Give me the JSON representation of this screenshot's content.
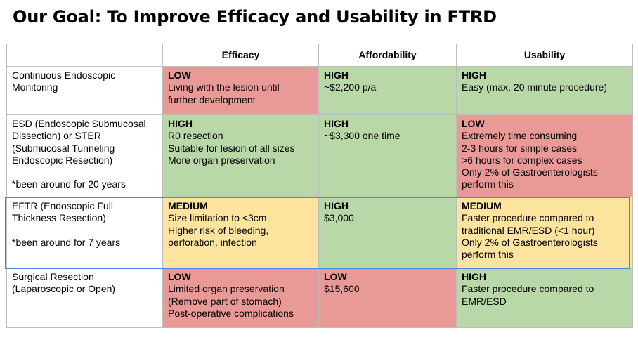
{
  "title": "Our Goal: To Improve Efficacy and Usability in FTRD",
  "headers": [
    "",
    "Efficacy",
    "Affordability",
    "Usability"
  ],
  "rows": [
    {
      "label": [
        "Continuous Endoscopic",
        "Monitoring"
      ],
      "note": "",
      "cells": [
        {
          "color": "red",
          "level": "LOW",
          "lines": [
            "Living with the lesion until",
            "further development"
          ]
        },
        {
          "color": "green",
          "level": "HIGH",
          "lines": [
            "~$2,200 p/a"
          ]
        },
        {
          "color": "green",
          "level": "HIGH",
          "lines": [
            "Easy (max. 20 minute procedure)"
          ]
        }
      ]
    },
    {
      "label": [
        "ESD (Endoscopic Submucosal",
        "Dissection) or STER",
        "(Submucosal Tunneling",
        "Endoscopic Resection)"
      ],
      "note": "*been around for 20 years",
      "cells": [
        {
          "color": "green",
          "level": "HIGH",
          "lines": [
            "R0 resection",
            "Suitable for lesion of all sizes",
            "More organ preservation"
          ]
        },
        {
          "color": "green",
          "level": "HIGH",
          "lines": [
            "~$3,300 one time"
          ]
        },
        {
          "color": "red",
          "level": "LOW",
          "lines": [
            "Extremely time consuming",
            "2-3 hours for simple cases",
            ">6 hours for complex cases",
            "Only 2% of Gastroenterologists",
            "perform this"
          ]
        }
      ]
    },
    {
      "label": [
        "EFTR (Endoscopic Full",
        "Thickness Resection)"
      ],
      "note": "*been around for 7 years",
      "cells": [
        {
          "color": "yellow",
          "level": "MEDIUM",
          "lines": [
            "Size limitation to <3cm",
            "Higher risk of bleeding,",
            "perforation, infection"
          ]
        },
        {
          "color": "green",
          "level": "HIGH",
          "lines": [
            "$3,000"
          ]
        },
        {
          "color": "yellow",
          "level": "MEDIUM",
          "lines": [
            "Faster procedure compared to",
            "traditional EMR/ESD (<1 hour)",
            "Only 2% of Gastroenterologists",
            "perform this"
          ]
        }
      ]
    },
    {
      "label": [
        "Surgical Resection",
        "(Laparoscopic or Open)"
      ],
      "note": "",
      "cells": [
        {
          "color": "red",
          "level": "LOW",
          "lines": [
            "Limited organ preservation",
            "(Remove part of stomach)",
            "Post-operative complications"
          ]
        },
        {
          "color": "red",
          "level": "LOW",
          "lines": [
            "$15,600"
          ]
        },
        {
          "color": "green",
          "level": "HIGH",
          "lines": [
            "Faster procedure compared to",
            "EMR/ESD"
          ]
        }
      ]
    }
  ],
  "highlight_row": 2,
  "colors": {
    "red": "#e99a97",
    "green": "#b8d8a8",
    "yellow": "#fde49e",
    "highlight": "#4a86e8"
  }
}
